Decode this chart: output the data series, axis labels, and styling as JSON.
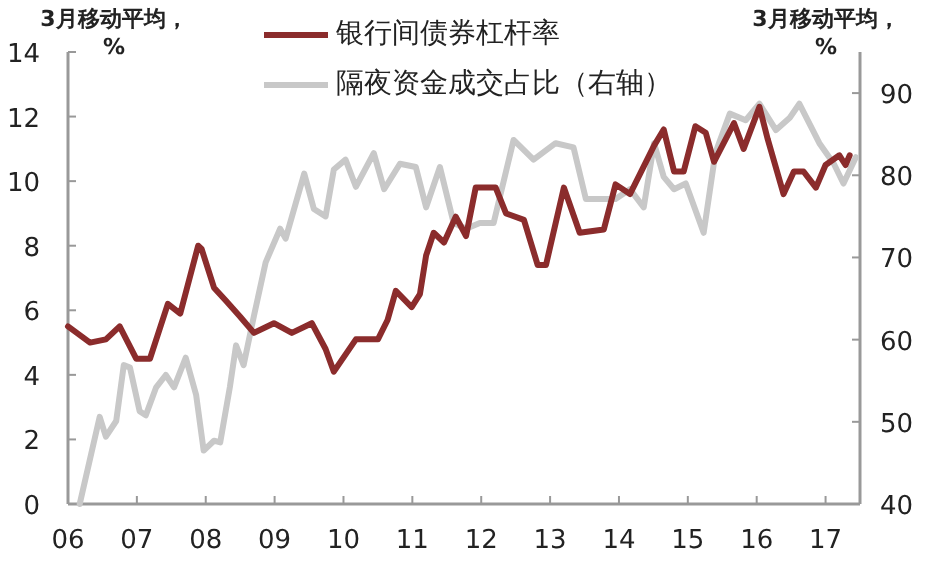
{
  "chart_data": {
    "type": "line",
    "ylabel": "3月移动平均，%",
    "y2label": "3月移动平均，%",
    "legend": "top",
    "grid": false,
    "marker": "none",
    "line_style": "solid",
    "xlim": [
      2006,
      2017.5
    ],
    "xticks": [
      {
        "value": 2006,
        "label": "06"
      },
      {
        "value": 2007,
        "label": "07"
      },
      {
        "value": 2008,
        "label": "08"
      },
      {
        "value": 2009,
        "label": "09"
      },
      {
        "value": 2010,
        "label": "10"
      },
      {
        "value": 2011,
        "label": "11"
      },
      {
        "value": 2012,
        "label": "12"
      },
      {
        "value": 2013,
        "label": "13"
      },
      {
        "value": 2014,
        "label": "14"
      },
      {
        "value": 2015,
        "label": "15"
      },
      {
        "value": 2016,
        "label": "16"
      },
      {
        "value": 2017,
        "label": "17"
      }
    ],
    "ylim": [
      0,
      14
    ],
    "yticks": [
      0,
      2,
      4,
      6,
      8,
      10,
      12,
      14
    ],
    "y2lim": [
      40,
      95
    ],
    "y2ticks": [
      40,
      50,
      60,
      70,
      80,
      90
    ],
    "series": [
      {
        "name": "银行间债券杠杆率",
        "color": "#8b2c2c",
        "x": [
          2006.0,
          2006.32,
          2006.55,
          2006.75,
          2006.99,
          2007.19,
          2007.45,
          2007.63,
          2007.89,
          2007.94,
          2008.12,
          2008.29,
          2008.5,
          2008.7,
          2008.99,
          2009.25,
          2009.54,
          2009.74,
          2009.86,
          2010.18,
          2010.5,
          2010.64,
          2010.76,
          2010.99,
          2011.11,
          2011.2,
          2011.31,
          2011.46,
          2011.63,
          2011.78,
          2011.92,
          2012.21,
          2012.36,
          2012.62,
          2012.82,
          2012.94,
          2013.2,
          2013.43,
          2013.78,
          2013.95,
          2014.16,
          2014.51,
          2014.65,
          2014.8,
          2014.94,
          2015.11,
          2015.26,
          2015.38,
          2015.67,
          2015.81,
          2016.04,
          2016.16,
          2016.39,
          2016.54,
          2016.68,
          2016.86,
          2017.0,
          2017.2,
          2017.29,
          2017.35
        ],
        "values": [
          5.5,
          5.0,
          5.1,
          5.5,
          4.5,
          4.5,
          6.2,
          5.9,
          8.0,
          7.9,
          6.7,
          6.3,
          5.8,
          5.3,
          5.6,
          5.3,
          5.6,
          4.8,
          4.1,
          5.1,
          5.1,
          5.7,
          6.6,
          6.1,
          6.5,
          7.7,
          8.4,
          8.1,
          8.9,
          8.3,
          9.8,
          9.8,
          9.0,
          8.8,
          7.4,
          7.4,
          9.8,
          8.4,
          8.5,
          9.9,
          9.6,
          11.1,
          11.6,
          10.3,
          10.3,
          11.7,
          11.5,
          10.6,
          11.8,
          11.0,
          12.3,
          11.3,
          9.6,
          10.3,
          10.3,
          9.8,
          10.5,
          10.8,
          10.5,
          10.8
        ]
      },
      {
        "name": "隔夜资金成交占比（右轴）",
        "color": "#c8c8c8",
        "axis": "y2",
        "x": [
          2006.17,
          2006.46,
          2006.55,
          2006.7,
          2006.81,
          2006.9,
          2007.04,
          2007.13,
          2007.28,
          2007.42,
          2007.54,
          2007.71,
          2007.86,
          2007.97,
          2008.12,
          2008.21,
          2008.35,
          2008.44,
          2008.55,
          2008.7,
          2008.87,
          2009.08,
          2009.16,
          2009.43,
          2009.57,
          2009.74,
          2009.86,
          2010.03,
          2010.18,
          2010.44,
          2010.59,
          2010.82,
          2011.05,
          2011.2,
          2011.4,
          2011.6,
          2011.78,
          2011.98,
          2012.18,
          2012.47,
          2012.76,
          2013.08,
          2013.34,
          2013.52,
          2013.95,
          2014.16,
          2014.36,
          2014.51,
          2014.65,
          2014.8,
          2014.97,
          2015.23,
          2015.4,
          2015.61,
          2015.84,
          2016.04,
          2016.28,
          2016.48,
          2016.62,
          2016.91,
          2017.12,
          2017.26,
          2017.44
        ],
        "values": [
          40,
          50.6,
          48.2,
          50.1,
          56.9,
          56.6,
          51.3,
          50.8,
          54.2,
          55.7,
          54.2,
          57.8,
          53.3,
          46.5,
          47.7,
          47.5,
          54.2,
          59.3,
          56.9,
          62.9,
          69.4,
          73.5,
          72.3,
          80.2,
          75.9,
          75.0,
          80.7,
          81.9,
          78.6,
          82.7,
          78.3,
          81.4,
          81.0,
          76.1,
          81.0,
          74.2,
          73.5,
          74.2,
          74.2,
          84.3,
          81.9,
          83.9,
          83.4,
          77.1,
          77.1,
          78.3,
          76.1,
          83.9,
          79.8,
          78.3,
          79.0,
          73.0,
          82.7,
          87.5,
          86.7,
          88.7,
          85.5,
          87.0,
          88.7,
          83.9,
          81.4,
          79.0,
          82.2
        ]
      }
    ]
  }
}
